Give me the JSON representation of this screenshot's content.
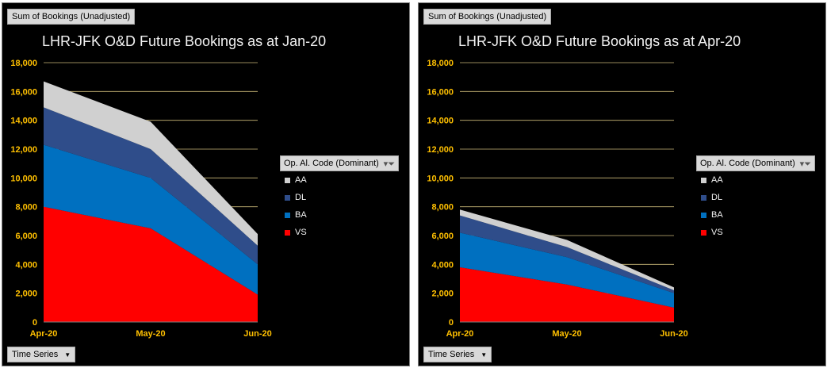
{
  "panels": [
    {
      "sum_button": "Sum of Bookings (Unadjusted)",
      "time_button": "Time Series",
      "legend_title": "Op. Al. Code (Dominant)",
      "legend_items": [
        {
          "label": "AA",
          "color": "#d0d0d0"
        },
        {
          "label": "DL",
          "color": "#2f4d8a"
        },
        {
          "label": "BA",
          "color": "#0070c0"
        },
        {
          "label": "VS",
          "color": "#ff0000"
        }
      ]
    },
    {
      "sum_button": "Sum of Bookings (Unadjusted)",
      "time_button": "Time Series",
      "legend_title": "Op. Al. Code (Dominant)",
      "legend_items": [
        {
          "label": "AA",
          "color": "#d0d0d0"
        },
        {
          "label": "DL",
          "color": "#2f4d8a"
        },
        {
          "label": "BA",
          "color": "#0070c0"
        },
        {
          "label": "VS",
          "color": "#ff0000"
        }
      ]
    }
  ],
  "chart_data": [
    {
      "type": "area",
      "stacked": true,
      "title": "LHR-JFK O&D Future Bookings as at Jan-20",
      "categories": [
        "Apr-20",
        "May-20",
        "Jun-20"
      ],
      "ylim": [
        0,
        18000
      ],
      "yticks": [
        "0",
        "2,000",
        "4,000",
        "6,000",
        "8,000",
        "10,000",
        "12,000",
        "14,000",
        "16,000",
        "18,000"
      ],
      "series": [
        {
          "name": "VS",
          "color": "#ff0000",
          "values": [
            8000,
            6500,
            1900
          ]
        },
        {
          "name": "BA",
          "color": "#0070c0",
          "values": [
            4300,
            3500,
            2100
          ]
        },
        {
          "name": "DL",
          "color": "#2f4d8a",
          "values": [
            2600,
            2000,
            1300
          ]
        },
        {
          "name": "AA",
          "color": "#d0d0d0",
          "values": [
            1800,
            1900,
            800
          ]
        }
      ],
      "grid": true
    },
    {
      "type": "area",
      "stacked": true,
      "title": "LHR-JFK O&D Future Bookings as at Apr-20",
      "categories": [
        "Apr-20",
        "May-20",
        "Jun-20"
      ],
      "ylim": [
        0,
        18000
      ],
      "yticks": [
        "0",
        "2,000",
        "4,000",
        "6,000",
        "8,000",
        "10,000",
        "12,000",
        "14,000",
        "16,000",
        "18,000"
      ],
      "series": [
        {
          "name": "VS",
          "color": "#ff0000",
          "values": [
            3800,
            2600,
            1000
          ]
        },
        {
          "name": "BA",
          "color": "#0070c0",
          "values": [
            2400,
            1900,
            1000
          ]
        },
        {
          "name": "DL",
          "color": "#2f4d8a",
          "values": [
            1200,
            700,
            200
          ]
        },
        {
          "name": "AA",
          "color": "#d0d0d0",
          "values": [
            400,
            500,
            200
          ]
        }
      ],
      "grid": true
    }
  ]
}
